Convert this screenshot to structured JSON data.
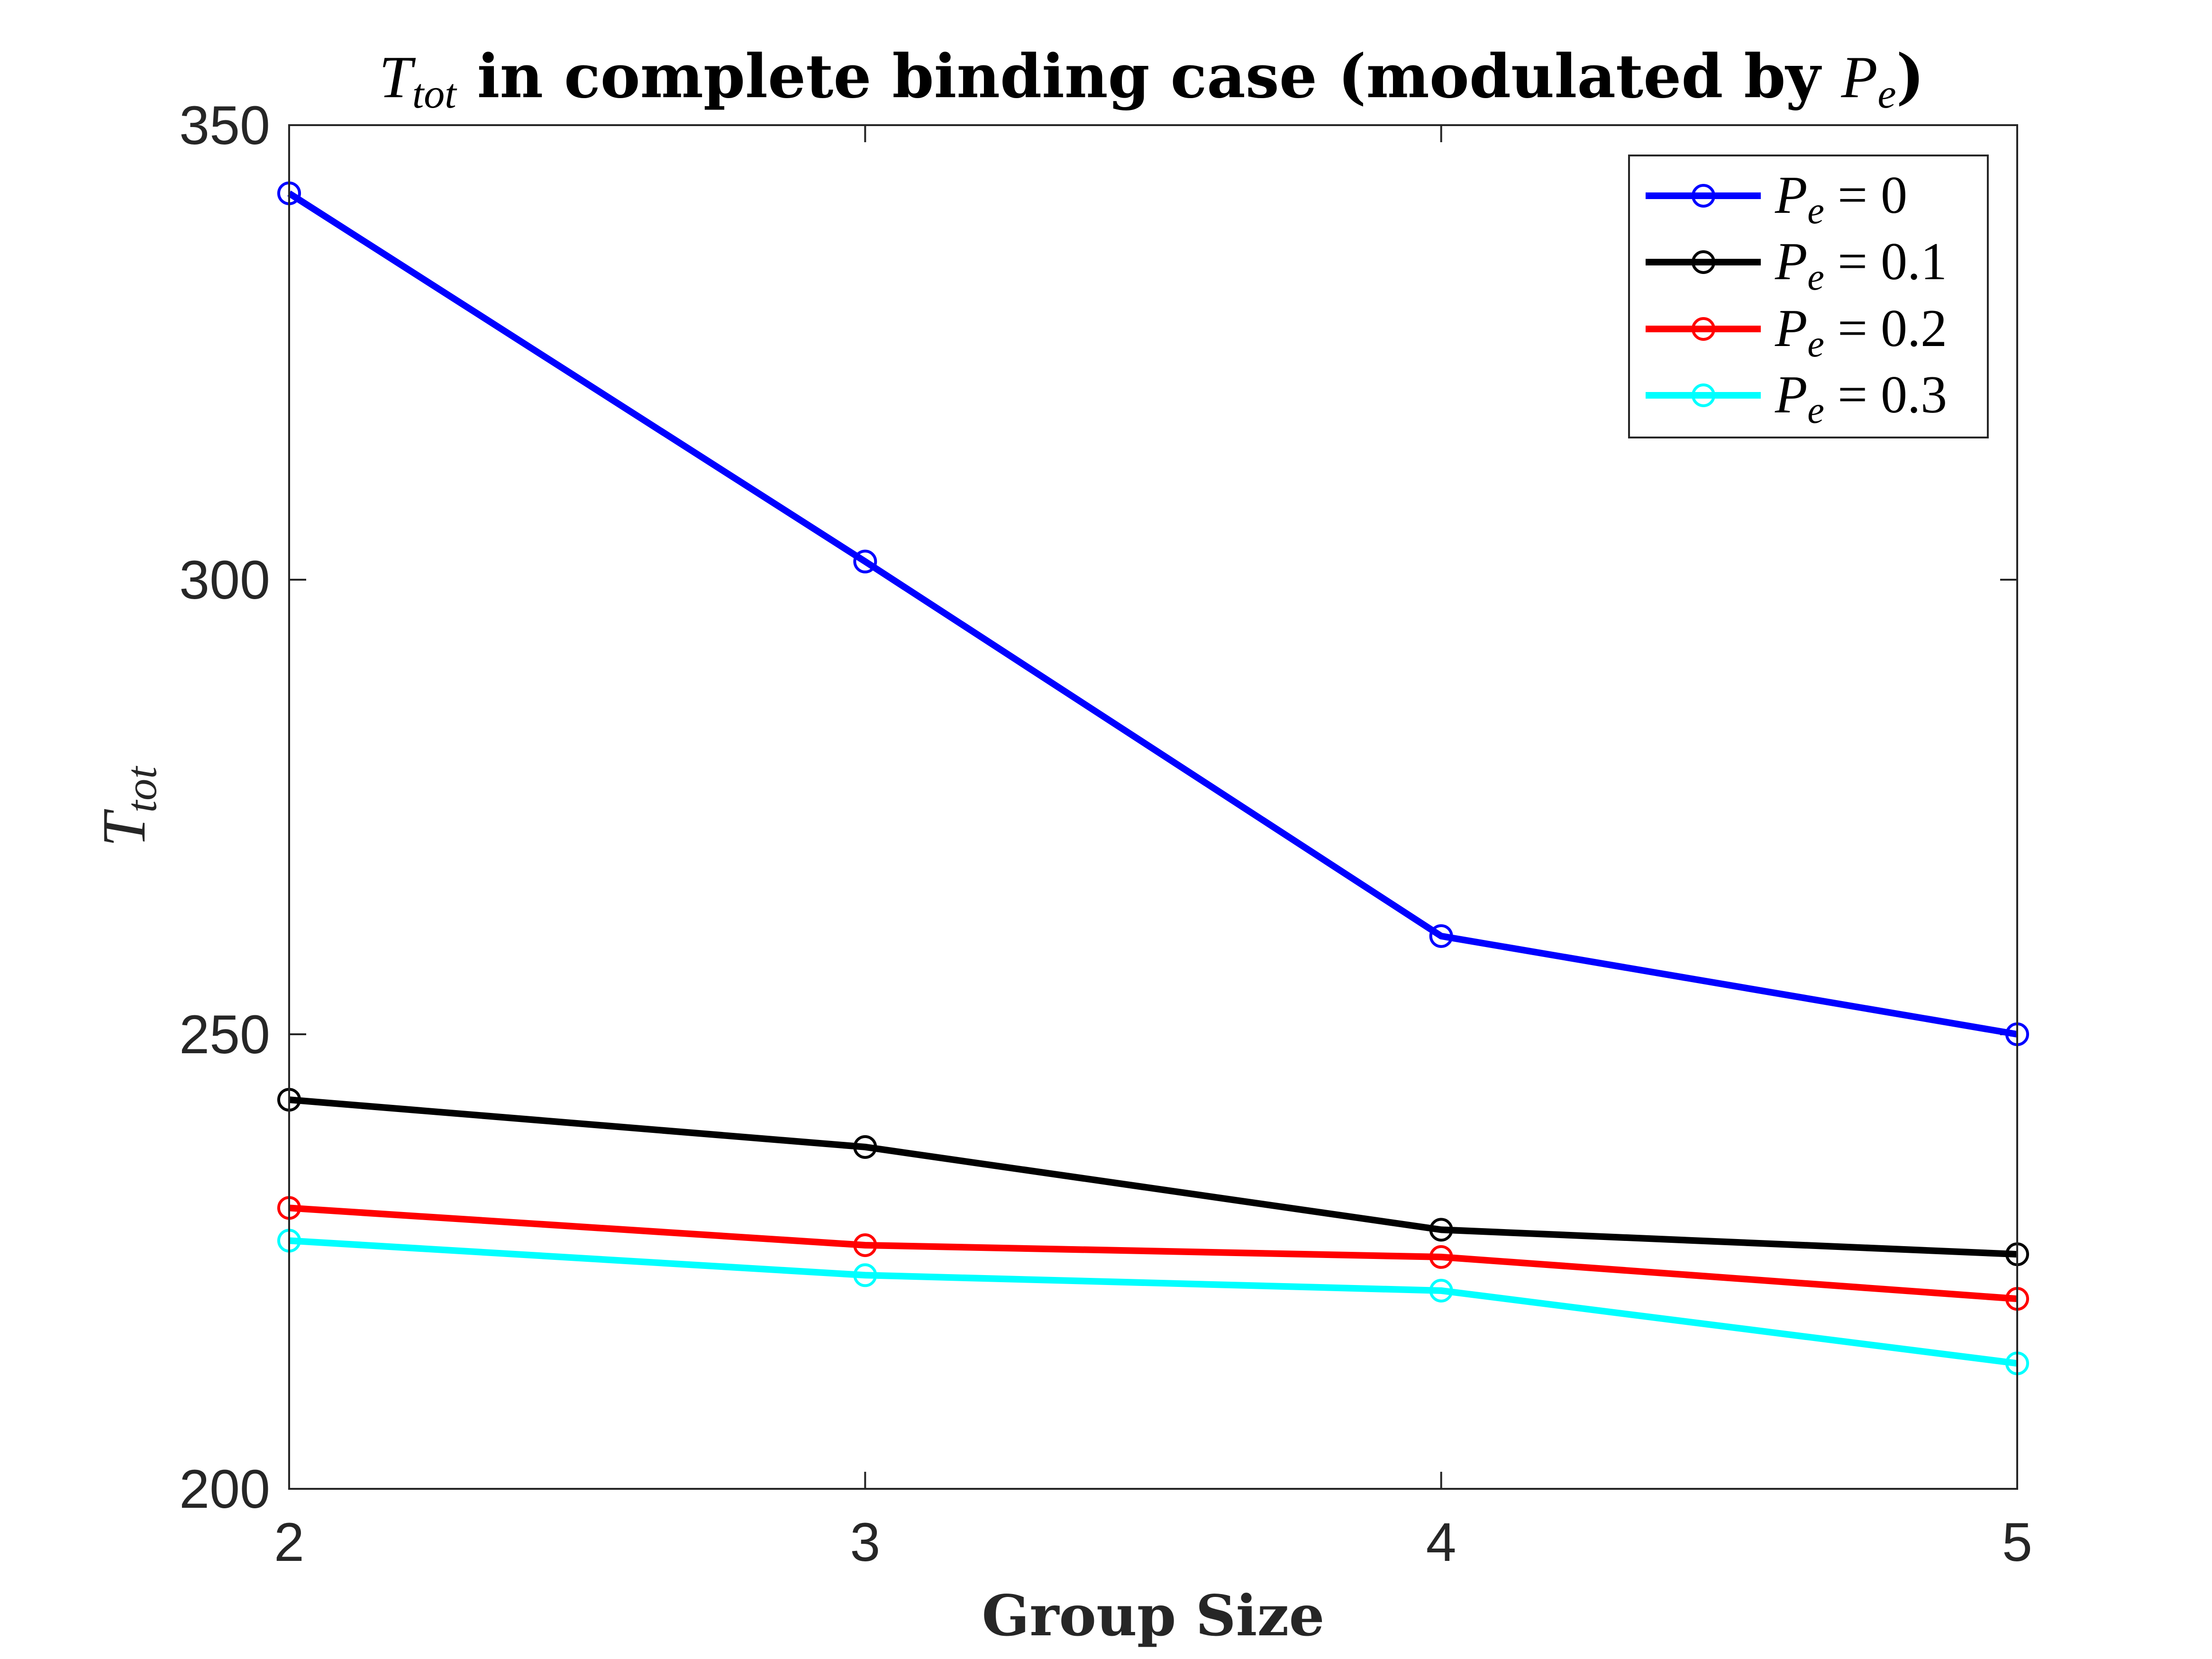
{
  "chart_data": {
    "type": "line",
    "title": {
      "math_main": "T",
      "math_sub": "tot",
      "text": " in complete binding case (modulated by ",
      "math_main2": "P",
      "math_sub2": "e",
      "close": ")"
    },
    "xlabel": "Group Size",
    "ylabel": {
      "main": "T",
      "sub": "tot"
    },
    "x": [
      2,
      3,
      4,
      5
    ],
    "xlim": [
      2,
      5
    ],
    "ylim": [
      200,
      350
    ],
    "xticks": [
      "2",
      "3",
      "4",
      "5"
    ],
    "yticks": [
      "200",
      "250",
      "300",
      "350"
    ],
    "grid": false,
    "legend_position": "top-right",
    "series": [
      {
        "name": "P_e = 0",
        "label_main": "P",
        "label_sub": "e",
        "label_rest": " = 0",
        "color": "#0000ff",
        "values": [
          342.5,
          302.0,
          260.8,
          250.0
        ]
      },
      {
        "name": "P_e = 0.1",
        "label_main": "P",
        "label_sub": "e",
        "label_rest": " = 0.1",
        "color": "#000000",
        "values": [
          242.8,
          237.6,
          228.5,
          225.8
        ]
      },
      {
        "name": "P_e = 0.2",
        "label_main": "P",
        "label_sub": "e",
        "label_rest": " = 0.2",
        "color": "#ff0000",
        "values": [
          230.9,
          226.8,
          225.5,
          220.9
        ]
      },
      {
        "name": "P_e = 0.3",
        "label_main": "P",
        "label_sub": "e",
        "label_rest": " = 0.3",
        "color": "#00ffff",
        "values": [
          227.3,
          223.5,
          221.8,
          213.8
        ]
      }
    ]
  }
}
